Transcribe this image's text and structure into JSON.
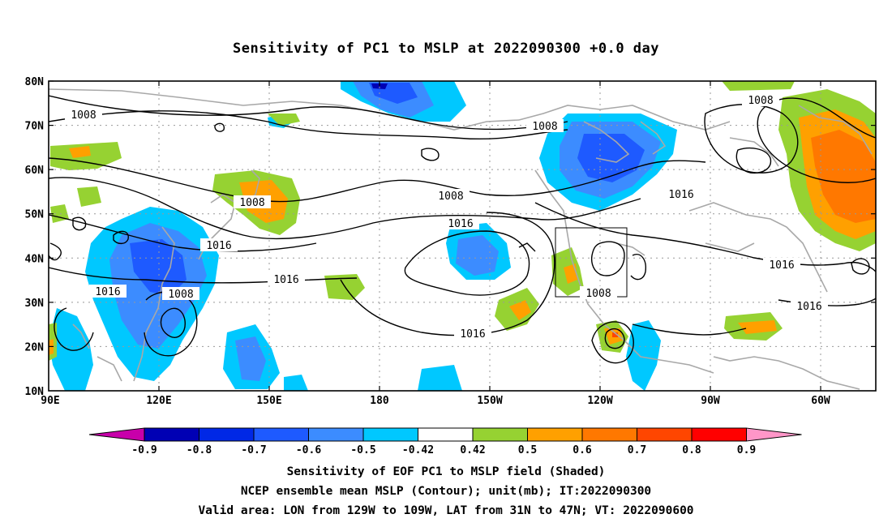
{
  "title": "Sensitivity of PC1 to MSLP at 2022090300 +0.0 day",
  "lat_labels": [
    "80N",
    "70N",
    "60N",
    "50N",
    "40N",
    "30N",
    "20N",
    "10N"
  ],
  "lon_labels": [
    "90E",
    "120E",
    "150E",
    "180",
    "150W",
    "120W",
    "90W",
    "60W"
  ],
  "contour_labels": {
    "c1": "1008",
    "c2": "1008",
    "c3": "1008",
    "c4": "1008",
    "c5": "1008",
    "c6": "1016",
    "c7": "1016",
    "c8": "1016",
    "c9": "1016",
    "c10": "1016",
    "c11": "1008",
    "c12": "1016",
    "c13": "1016",
    "c14": "1016"
  },
  "colorbar": {
    "labels": [
      "-0.9",
      "-0.8",
      "-0.7",
      "-0.6",
      "-0.5",
      "-0.42",
      "0.42",
      "0.5",
      "0.6",
      "0.7",
      "0.8",
      "0.9"
    ],
    "colors": [
      "#0000b4",
      "#0028e6",
      "#1e5aff",
      "#3c8cff",
      "#00c8ff",
      "#ffffff",
      "#96d232",
      "#ffa000",
      "#ff7800",
      "#ff4600",
      "#ff0000"
    ],
    "under_color": "#c800aa",
    "over_color": "#ff96c8"
  },
  "captions": {
    "line1": "Sensitivity of EOF PC1 to MSLP field (Shaded)",
    "line2": "NCEP ensemble mean MSLP (Contour); unit(mb); IT:2022090300",
    "line3": "Valid area: LON from 129W to 109W, LAT from 31N to 47N; VT: 2022090600"
  }
}
